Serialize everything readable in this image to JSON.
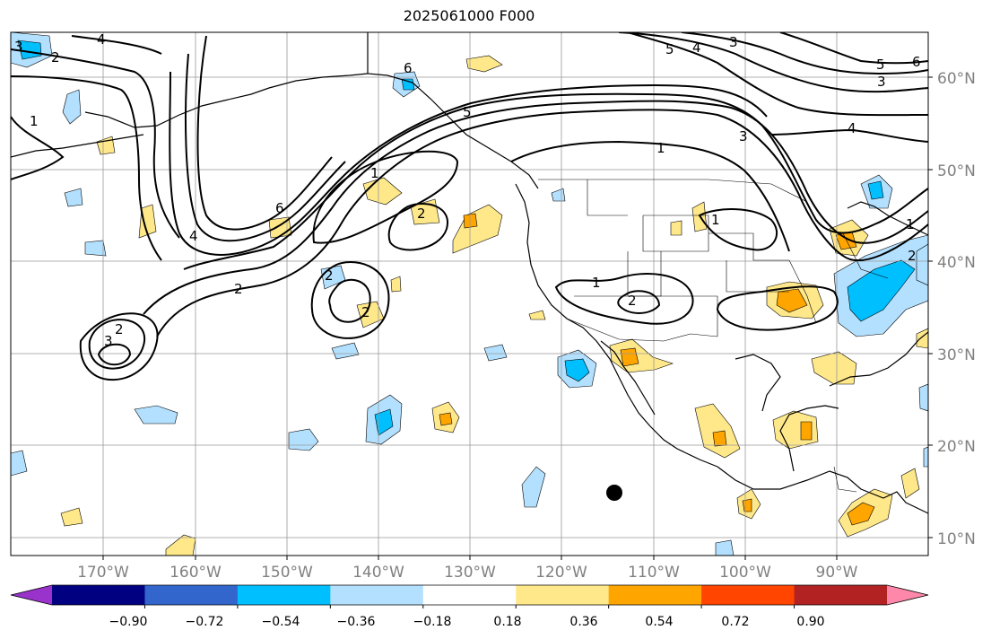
{
  "title": "2025061000 F000",
  "lon_labels": [
    "170°W",
    "160°W",
    "150°W",
    "140°W",
    "130°W",
    "120°W",
    "110°W",
    "100°W",
    "90°W"
  ],
  "lat_labels": [
    "60°N",
    "50°N",
    "40°N",
    "30°N",
    "20°N",
    "10°N"
  ],
  "contour_labels": [
    "3",
    "2",
    "4",
    "6",
    "3",
    "5",
    "4",
    "3",
    "5",
    "6",
    "3",
    "4",
    "1",
    "1",
    "6",
    "4",
    "5",
    "1",
    "2",
    "1",
    "2",
    "2",
    "3",
    "2",
    "2",
    "1",
    "2",
    "1",
    "2"
  ],
  "colorbar": {
    "tick_labels": [
      "−0.90",
      "−0.72",
      "−0.54",
      "−0.36",
      "−0.18",
      "0.18",
      "0.36",
      "0.54",
      "0.72",
      "0.90"
    ],
    "colors": [
      "#9933cc",
      "#000080",
      "#3366cc",
      "#00bfff",
      "#b3e0ff",
      "#ffffff",
      "#ffe88a",
      "#ffa500",
      "#ff4500",
      "#b22222",
      "#ff88aa"
    ]
  },
  "colors": {
    "contour": "#000000",
    "grid": "#999999",
    "axis_label": "#808080"
  }
}
